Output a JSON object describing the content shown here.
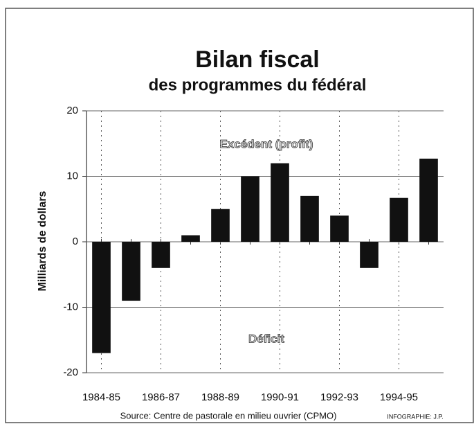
{
  "chart_data": {
    "type": "bar",
    "title": "Bilan fiscal",
    "subtitle": "des programmes du fédéral",
    "y_label": "Milliards de dollars",
    "source": "Source: Centre de pastorale en milieu ouvrier (CPMO)",
    "credit": "INFOGRAPHIE: J.P.",
    "annotations": [
      "Excédent (profit)",
      "Déficit"
    ],
    "categories": [
      "1984-85",
      null,
      "1986-87",
      null,
      "1988-89",
      null,
      "1990-91",
      null,
      "1992-93",
      null,
      "1994-95",
      null
    ],
    "values": [
      -17,
      -9,
      -4,
      1,
      5,
      10,
      12,
      7,
      4,
      -4,
      6.7,
      12.7
    ],
    "color": "#111111",
    "ylim": [
      -20,
      20
    ],
    "yticks": [
      -20,
      -10,
      0,
      10,
      20
    ],
    "grid": true
  }
}
